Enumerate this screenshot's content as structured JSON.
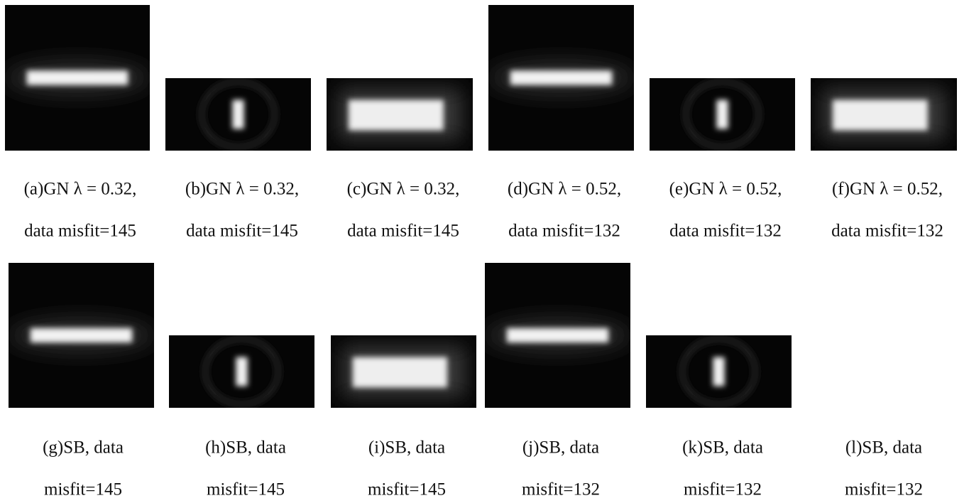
{
  "panels": [
    {
      "line1": "(a)GN λ = 0.32,",
      "line2": "data misfit=145"
    },
    {
      "line1": "(b)GN λ = 0.32,",
      "line2": "data misfit=145"
    },
    {
      "line1": "(c)GN λ = 0.32,",
      "line2": "data misfit=145"
    },
    {
      "line1": "(d)GN λ = 0.52,",
      "line2": "data misfit=132"
    },
    {
      "line1": "(e)GN λ = 0.52,",
      "line2": "data misfit=132"
    },
    {
      "line1": "(f)GN λ = 0.52,",
      "line2": "data misfit=132"
    },
    {
      "line1": "(g)SB, data",
      "line2": "misfit=145"
    },
    {
      "line1": "(h)SB, data",
      "line2": "misfit=145"
    },
    {
      "line1": "(i)SB, data",
      "line2": "misfit=145"
    },
    {
      "line1": "(j)SB, data",
      "line2": "misfit=132"
    },
    {
      "line1": "(k)SB, data",
      "line2": "misfit=132"
    },
    {
      "line1": "(l)SB, data",
      "line2": "misfit=132"
    }
  ]
}
